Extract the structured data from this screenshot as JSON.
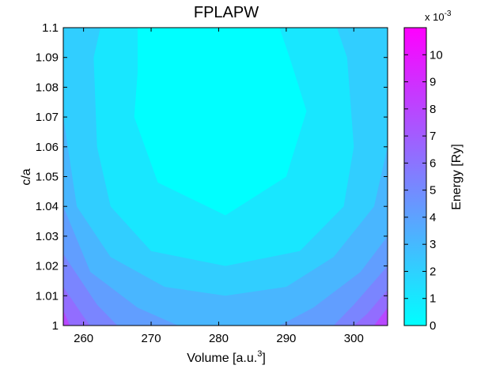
{
  "chart_data": {
    "type": "heatmap",
    "subtype": "filled-contour",
    "title": "FPLAPW",
    "xlabel": "Volume [a.u.",
    "xlabel_superscript": "3",
    "xlabel_suffix": "]",
    "ylabel": "c/a",
    "xlim": [
      257,
      305
    ],
    "ylim": [
      1.0,
      1.1
    ],
    "xticks": [
      "260",
      "270",
      "280",
      "290",
      "300"
    ],
    "xtick_values": [
      260,
      270,
      280,
      290,
      300
    ],
    "yticks": [
      "1",
      "1.01",
      "1.02",
      "1.03",
      "1.04",
      "1.05",
      "1.06",
      "1.07",
      "1.08",
      "1.09",
      "1.1"
    ],
    "ytick_values": [
      1.0,
      1.01,
      1.02,
      1.03,
      1.04,
      1.05,
      1.06,
      1.07,
      1.08,
      1.09,
      1.1
    ],
    "grid": false,
    "colorbar": {
      "label": "Energy [Ry]",
      "exponent_label": "x 10",
      "exponent": "-3",
      "range": [
        0,
        11
      ],
      "ticks": [
        "0",
        "1",
        "2",
        "3",
        "4",
        "5",
        "6",
        "7",
        "8",
        "9",
        "10"
      ],
      "tick_values": [
        0,
        1,
        2,
        3,
        4,
        5,
        6,
        7,
        8,
        9,
        10
      ],
      "colormap": "cool",
      "color_low": "#00FFFF",
      "color_high": "#FF00FF"
    },
    "contour_levels": [
      0.55,
      1.6,
      2.65,
      3.7,
      4.75,
      5.8,
      6.85
    ],
    "contour_regions": [
      {
        "level": 0.55,
        "points": [
          [
            268,
            1.1
          ],
          [
            272,
            1.1
          ],
          [
            289,
            1.1
          ],
          [
            290.5,
            1.09
          ],
          [
            293,
            1.072
          ],
          [
            290,
            1.05
          ],
          [
            281,
            1.037
          ],
          [
            271,
            1.048
          ],
          [
            267.5,
            1.07
          ],
          [
            268,
            1.085
          ]
        ]
      },
      {
        "level": 1.6,
        "points": [
          [
            262.5,
            1.1
          ],
          [
            297.5,
            1.1
          ],
          [
            299,
            1.09
          ],
          [
            300,
            1.06
          ],
          [
            298.5,
            1.04
          ],
          [
            292,
            1.025
          ],
          [
            281,
            1.02
          ],
          [
            270,
            1.025
          ],
          [
            264,
            1.04
          ],
          [
            262,
            1.06
          ],
          [
            261.5,
            1.09
          ]
        ]
      },
      {
        "level": 2.65,
        "points": [
          [
            257,
            1.07
          ],
          [
            259,
            1.04
          ],
          [
            264,
            1.023
          ],
          [
            272,
            1.013
          ],
          [
            281,
            1.01
          ],
          [
            290,
            1.013
          ],
          [
            297,
            1.023
          ],
          [
            303,
            1.04
          ],
          [
            305,
            1.06
          ],
          [
            305,
            1.1
          ],
          [
            257,
            1.1
          ]
        ]
      },
      {
        "level": 3.7,
        "points": [
          [
            257,
            1.04
          ],
          [
            261,
            1.018
          ],
          [
            268,
            1.006
          ],
          [
            274,
            1.0
          ],
          [
            289,
            1.0
          ],
          [
            294,
            1.006
          ],
          [
            301,
            1.018
          ],
          [
            305,
            1.03
          ],
          [
            305,
            1.1
          ],
          [
            257,
            1.1
          ]
        ]
      },
      {
        "level": 4.75,
        "points": [
          [
            257,
            1.024
          ],
          [
            262,
            1.007
          ],
          [
            265,
            1.0
          ],
          [
            297,
            1.0
          ],
          [
            300,
            1.007
          ],
          [
            305,
            1.02
          ],
          [
            305,
            1.1
          ],
          [
            257,
            1.1
          ]
        ]
      },
      {
        "level": 5.8,
        "points": [
          [
            257,
            1.013
          ],
          [
            260,
            1.003
          ],
          [
            261,
            1.0
          ],
          [
            300,
            1.0
          ],
          [
            302,
            1.004
          ],
          [
            305,
            1.012
          ],
          [
            305,
            1.1
          ],
          [
            257,
            1.1
          ]
        ]
      },
      {
        "level": 6.85,
        "points": [
          [
            257,
            1.005
          ],
          [
            258,
            1.0
          ],
          [
            303,
            1.0
          ],
          [
            305,
            1.006
          ],
          [
            305,
            1.1
          ],
          [
            257,
            1.1
          ]
        ]
      }
    ]
  }
}
